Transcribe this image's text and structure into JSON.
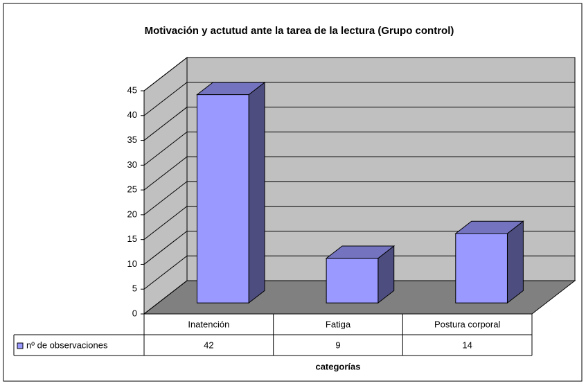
{
  "chart_data": {
    "type": "bar3d",
    "title": "Motivación y actutud ante la tarea de la lectura (Grupo control)",
    "categories": [
      "Inatención",
      "Fatiga",
      "Postura corporal"
    ],
    "series": [
      {
        "name": "nº de observaciones",
        "color": "#9999ff",
        "values": [
          42,
          9,
          14
        ]
      }
    ],
    "x_label": "categorías",
    "ylim": [
      0,
      45
    ],
    "yticks": [
      0,
      5,
      10,
      15,
      20,
      25,
      30,
      35,
      40,
      45
    ],
    "grid": true
  }
}
